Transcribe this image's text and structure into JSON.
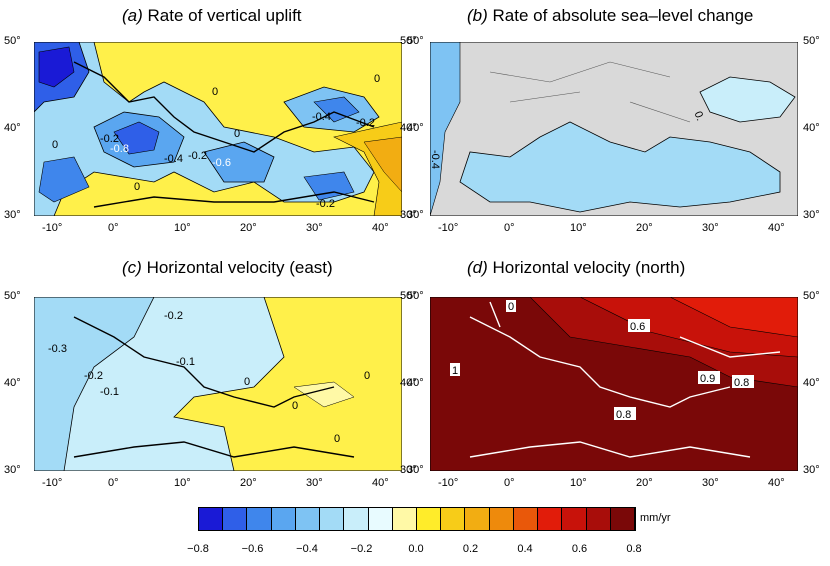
{
  "panels": {
    "a": {
      "letter": "(a)",
      "title": "Rate of vertical uplift",
      "contour_labels": [
        "0",
        "0",
        "-0.2",
        "-0.8",
        "-0.4",
        "-0.2",
        "-0.6",
        "0",
        "-0.2",
        "-0.4",
        "-0.2",
        "0",
        "0"
      ]
    },
    "b": {
      "letter": "(b)",
      "title": "Rate of absolute sea–level change",
      "contour_labels": [
        "-0.4",
        "0."
      ]
    },
    "c": {
      "letter": "(c)",
      "title": "Horizontal velocity (east)",
      "contour_labels": [
        "-0.3",
        "-0.2",
        "-0.1",
        "-0.2",
        "-0.1",
        "0",
        "0",
        "0",
        "0"
      ]
    },
    "d": {
      "letter": "(d)",
      "title": "Horizontal velocity (north)",
      "contour_labels": [
        "0",
        "0.6",
        "1",
        "0.9",
        "0.8",
        "0.8"
      ]
    }
  },
  "axes": {
    "lon_ticks": [
      "-10°",
      "0°",
      "10°",
      "20°",
      "30°",
      "40°"
    ],
    "lat_ticks": [
      "50°",
      "40°",
      "30°"
    ]
  },
  "colorbar": {
    "unit": "mm/yr",
    "ticks": [
      "−0.8",
      "−0.6",
      "−0.4",
      "−0.2",
      "0.0",
      "0.2",
      "0.4",
      "0.6",
      "0.8"
    ],
    "colors": [
      "#1a1ad6",
      "#2f5fe8",
      "#3f86ec",
      "#5aa6f0",
      "#7ec3f3",
      "#a3dbf6",
      "#c9eefa",
      "#e8fbff",
      "#fff9a6",
      "#ffec2a",
      "#f7cc18",
      "#f2ad12",
      "#ee8a0c",
      "#e9580a",
      "#e11c0a",
      "#c8120a",
      "#a80d0a",
      "#7a0808"
    ]
  }
}
